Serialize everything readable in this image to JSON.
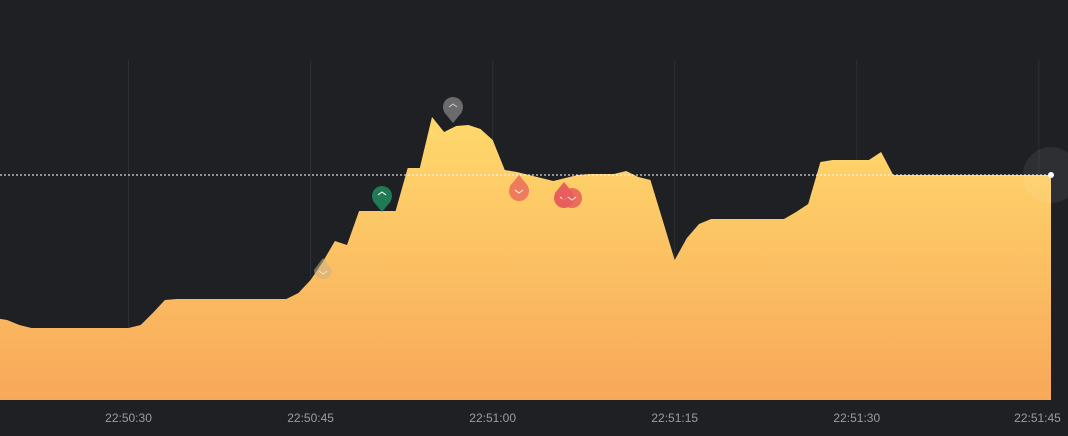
{
  "chart_data": {
    "type": "area",
    "x": [
      "22:50:19",
      "22:50:20",
      "22:50:21",
      "22:50:22",
      "22:50:23",
      "22:50:24",
      "22:50:25",
      "22:50:26",
      "22:50:27",
      "22:50:28",
      "22:50:29",
      "22:50:30",
      "22:50:31",
      "22:50:32",
      "22:50:33",
      "22:50:34",
      "22:50:35",
      "22:50:36",
      "22:50:37",
      "22:50:38",
      "22:50:39",
      "22:50:40",
      "22:50:41",
      "22:50:42",
      "22:50:43",
      "22:50:44",
      "22:50:45",
      "22:50:46",
      "22:50:47",
      "22:50:48",
      "22:50:49",
      "22:50:50",
      "22:50:51",
      "22:50:52",
      "22:50:53",
      "22:50:54",
      "22:50:55",
      "22:50:56",
      "22:50:57",
      "22:50:58",
      "22:50:59",
      "22:51:00",
      "22:51:01",
      "22:51:02",
      "22:51:03",
      "22:51:04",
      "22:51:05",
      "22:51:06",
      "22:51:07",
      "22:51:08",
      "22:51:09",
      "22:51:10",
      "22:51:11",
      "22:51:12",
      "22:51:13",
      "22:51:14",
      "22:51:15",
      "22:51:16",
      "22:51:17",
      "22:51:18",
      "22:51:19",
      "22:51:20",
      "22:51:21",
      "22:51:22",
      "22:51:23",
      "22:51:24",
      "22:51:25",
      "22:51:26",
      "22:51:27",
      "22:51:28",
      "22:51:29",
      "22:51:30",
      "22:51:31",
      "22:51:32",
      "22:51:33",
      "22:51:34",
      "22:51:35",
      "22:51:36",
      "22:51:37",
      "22:51:38",
      "22:51:39",
      "22:51:40",
      "22:51:41",
      "22:51:42",
      "22:51:43",
      "22:51:44",
      "22:51:45",
      "22:51:46"
    ],
    "values": [
      82,
      80,
      75,
      72,
      72,
      72,
      72,
      72,
      72,
      72,
      72,
      72,
      75,
      87,
      100,
      101,
      101,
      101,
      101,
      101,
      101,
      101,
      101,
      101,
      101,
      107,
      120,
      138,
      159,
      155,
      189,
      189,
      189,
      189,
      232,
      232,
      283,
      268,
      274,
      275,
      271,
      260,
      230,
      228,
      225,
      222,
      219,
      222,
      225,
      226,
      226,
      226,
      229,
      223,
      220,
      180,
      140,
      162,
      176,
      181,
      181,
      181,
      181,
      181,
      181,
      181,
      188,
      196,
      238,
      240,
      240,
      240,
      240,
      248,
      225,
      225,
      225,
      225,
      225,
      225,
      225,
      225,
      225,
      225,
      225,
      225,
      225,
      225
    ],
    "xlim": [
      "22:50:19",
      "22:51:46"
    ],
    "xticks": [
      "22:50:30",
      "22:50:45",
      "22:51:00",
      "22:51:15",
      "22:51:30",
      "22:51:45"
    ],
    "ylim": [
      0,
      400
    ],
    "grid": true
  }
}
